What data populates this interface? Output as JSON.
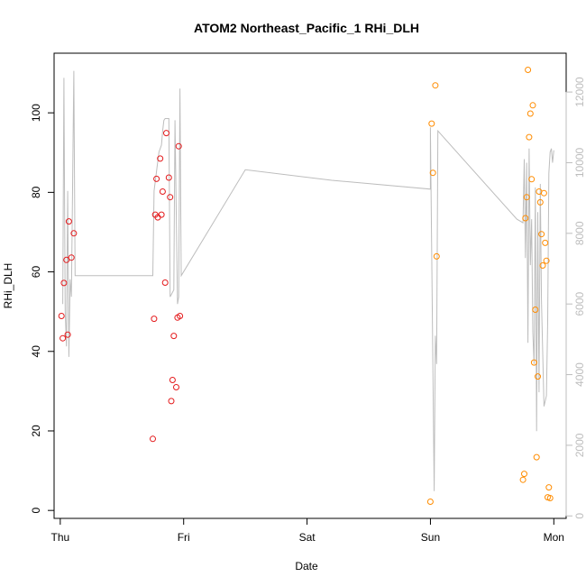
{
  "chart_data": {
    "type": "scatter",
    "title": "ATOM2 Northeast_Pacific_1 RHi_DLH",
    "xlabel": "Date",
    "ylabel": "RHi_DLH",
    "x_ticks": [
      "Thu",
      "Fri",
      "Sat",
      "Sun",
      "Mon"
    ],
    "xlim": [
      -0.05,
      4.1
    ],
    "ylim": [
      -2,
      115
    ],
    "y_ticks": [
      0,
      20,
      40,
      60,
      80,
      100
    ],
    "y2_ticks": [
      0,
      2000,
      4000,
      6000,
      8000,
      10000,
      12000
    ],
    "y2lim": [
      -70,
      13100
    ],
    "grid": false,
    "colors": {
      "red": "#e41a1c",
      "orange": "#ff8c00",
      "line": "#bdbdbd",
      "axis": "#000000",
      "axis_right": "#bdbdbd"
    },
    "series": [
      {
        "color": "red",
        "points": [
          [
            0.01,
            48.9
          ],
          [
            0.02,
            43.3
          ],
          [
            0.03,
            57.2
          ],
          [
            0.05,
            63.0
          ],
          [
            0.06,
            44.2
          ],
          [
            0.07,
            72.7
          ],
          [
            0.09,
            63.6
          ],
          [
            0.11,
            69.7
          ],
          [
            0.75,
            18.0
          ],
          [
            0.76,
            48.2
          ],
          [
            0.77,
            74.4
          ],
          [
            0.78,
            83.4
          ],
          [
            0.79,
            73.7
          ],
          [
            0.81,
            88.5
          ],
          [
            0.82,
            74.4
          ],
          [
            0.83,
            80.2
          ],
          [
            0.85,
            57.3
          ],
          [
            0.86,
            94.9
          ],
          [
            0.88,
            83.7
          ],
          [
            0.89,
            78.8
          ],
          [
            0.9,
            27.5
          ],
          [
            0.91,
            32.8
          ],
          [
            0.92,
            43.9
          ],
          [
            0.94,
            31.0
          ],
          [
            0.95,
            48.5
          ],
          [
            0.96,
            91.6
          ],
          [
            0.97,
            48.9
          ]
        ]
      },
      {
        "color": "orange",
        "points": [
          [
            3.0,
            2.2
          ],
          [
            3.01,
            97.3
          ],
          [
            3.02,
            84.9
          ],
          [
            3.04,
            106.9
          ],
          [
            3.05,
            63.9
          ],
          [
            3.75,
            7.7
          ],
          [
            3.76,
            9.2
          ],
          [
            3.77,
            73.5
          ],
          [
            3.78,
            78.8
          ],
          [
            3.79,
            110.8
          ],
          [
            3.8,
            93.9
          ],
          [
            3.81,
            99.8
          ],
          [
            3.82,
            83.3
          ],
          [
            3.83,
            101.9
          ],
          [
            3.84,
            37.2
          ],
          [
            3.85,
            50.5
          ],
          [
            3.86,
            13.4
          ],
          [
            3.87,
            33.7
          ],
          [
            3.88,
            80.2
          ],
          [
            3.89,
            77.5
          ],
          [
            3.9,
            69.5
          ],
          [
            3.91,
            61.6
          ],
          [
            3.92,
            79.8
          ],
          [
            3.93,
            67.3
          ],
          [
            3.94,
            62.8
          ],
          [
            3.95,
            3.3
          ],
          [
            3.96,
            5.8
          ],
          [
            3.97,
            3.1
          ]
        ]
      }
    ],
    "line_series": {
      "axis": "right",
      "points": [
        [
          0.02,
          6000
        ],
        [
          0.03,
          12400
        ],
        [
          0.04,
          5800
        ],
        [
          0.05,
          4800
        ],
        [
          0.06,
          9200
        ],
        [
          0.07,
          4500
        ],
        [
          0.08,
          6700
        ],
        [
          0.09,
          6200
        ],
        [
          0.11,
          12600
        ],
        [
          0.12,
          6800
        ],
        [
          0.2,
          6800
        ],
        [
          0.4,
          6800
        ],
        [
          0.6,
          6800
        ],
        [
          0.75,
          6800
        ],
        [
          0.76,
          9200
        ],
        [
          0.8,
          10300
        ],
        [
          0.82,
          10500
        ],
        [
          0.83,
          10900
        ],
        [
          0.84,
          11200
        ],
        [
          0.85,
          11250
        ],
        [
          0.88,
          11250
        ],
        [
          0.89,
          6200
        ],
        [
          0.92,
          6400
        ],
        [
          0.93,
          11200
        ],
        [
          0.95,
          6000
        ],
        [
          0.96,
          6200
        ],
        [
          0.97,
          12100
        ],
        [
          0.98,
          6800
        ],
        [
          1.5,
          9800
        ],
        [
          2.2,
          9500
        ],
        [
          3.0,
          9250
        ],
        [
          3.0,
          11000
        ],
        [
          3.03,
          700
        ],
        [
          3.04,
          5100
        ],
        [
          3.05,
          4300
        ],
        [
          3.06,
          10900
        ],
        [
          3.7,
          8400
        ],
        [
          3.75,
          8300
        ],
        [
          3.76,
          10100
        ],
        [
          3.77,
          7300
        ],
        [
          3.78,
          10000
        ],
        [
          3.79,
          4900
        ],
        [
          3.8,
          10400
        ],
        [
          3.81,
          7100
        ],
        [
          3.82,
          8400
        ],
        [
          3.83,
          5200
        ],
        [
          3.84,
          4300
        ],
        [
          3.85,
          9300
        ],
        [
          3.86,
          2400
        ],
        [
          3.87,
          8600
        ],
        [
          3.88,
          3500
        ],
        [
          3.89,
          9400
        ],
        [
          3.9,
          6100
        ],
        [
          3.92,
          3100
        ],
        [
          3.94,
          3400
        ],
        [
          3.95,
          5500
        ],
        [
          3.96,
          9700
        ],
        [
          3.97,
          10300
        ],
        [
          3.98,
          10400
        ],
        [
          3.99,
          10000
        ],
        [
          4.0,
          10350
        ]
      ]
    }
  }
}
